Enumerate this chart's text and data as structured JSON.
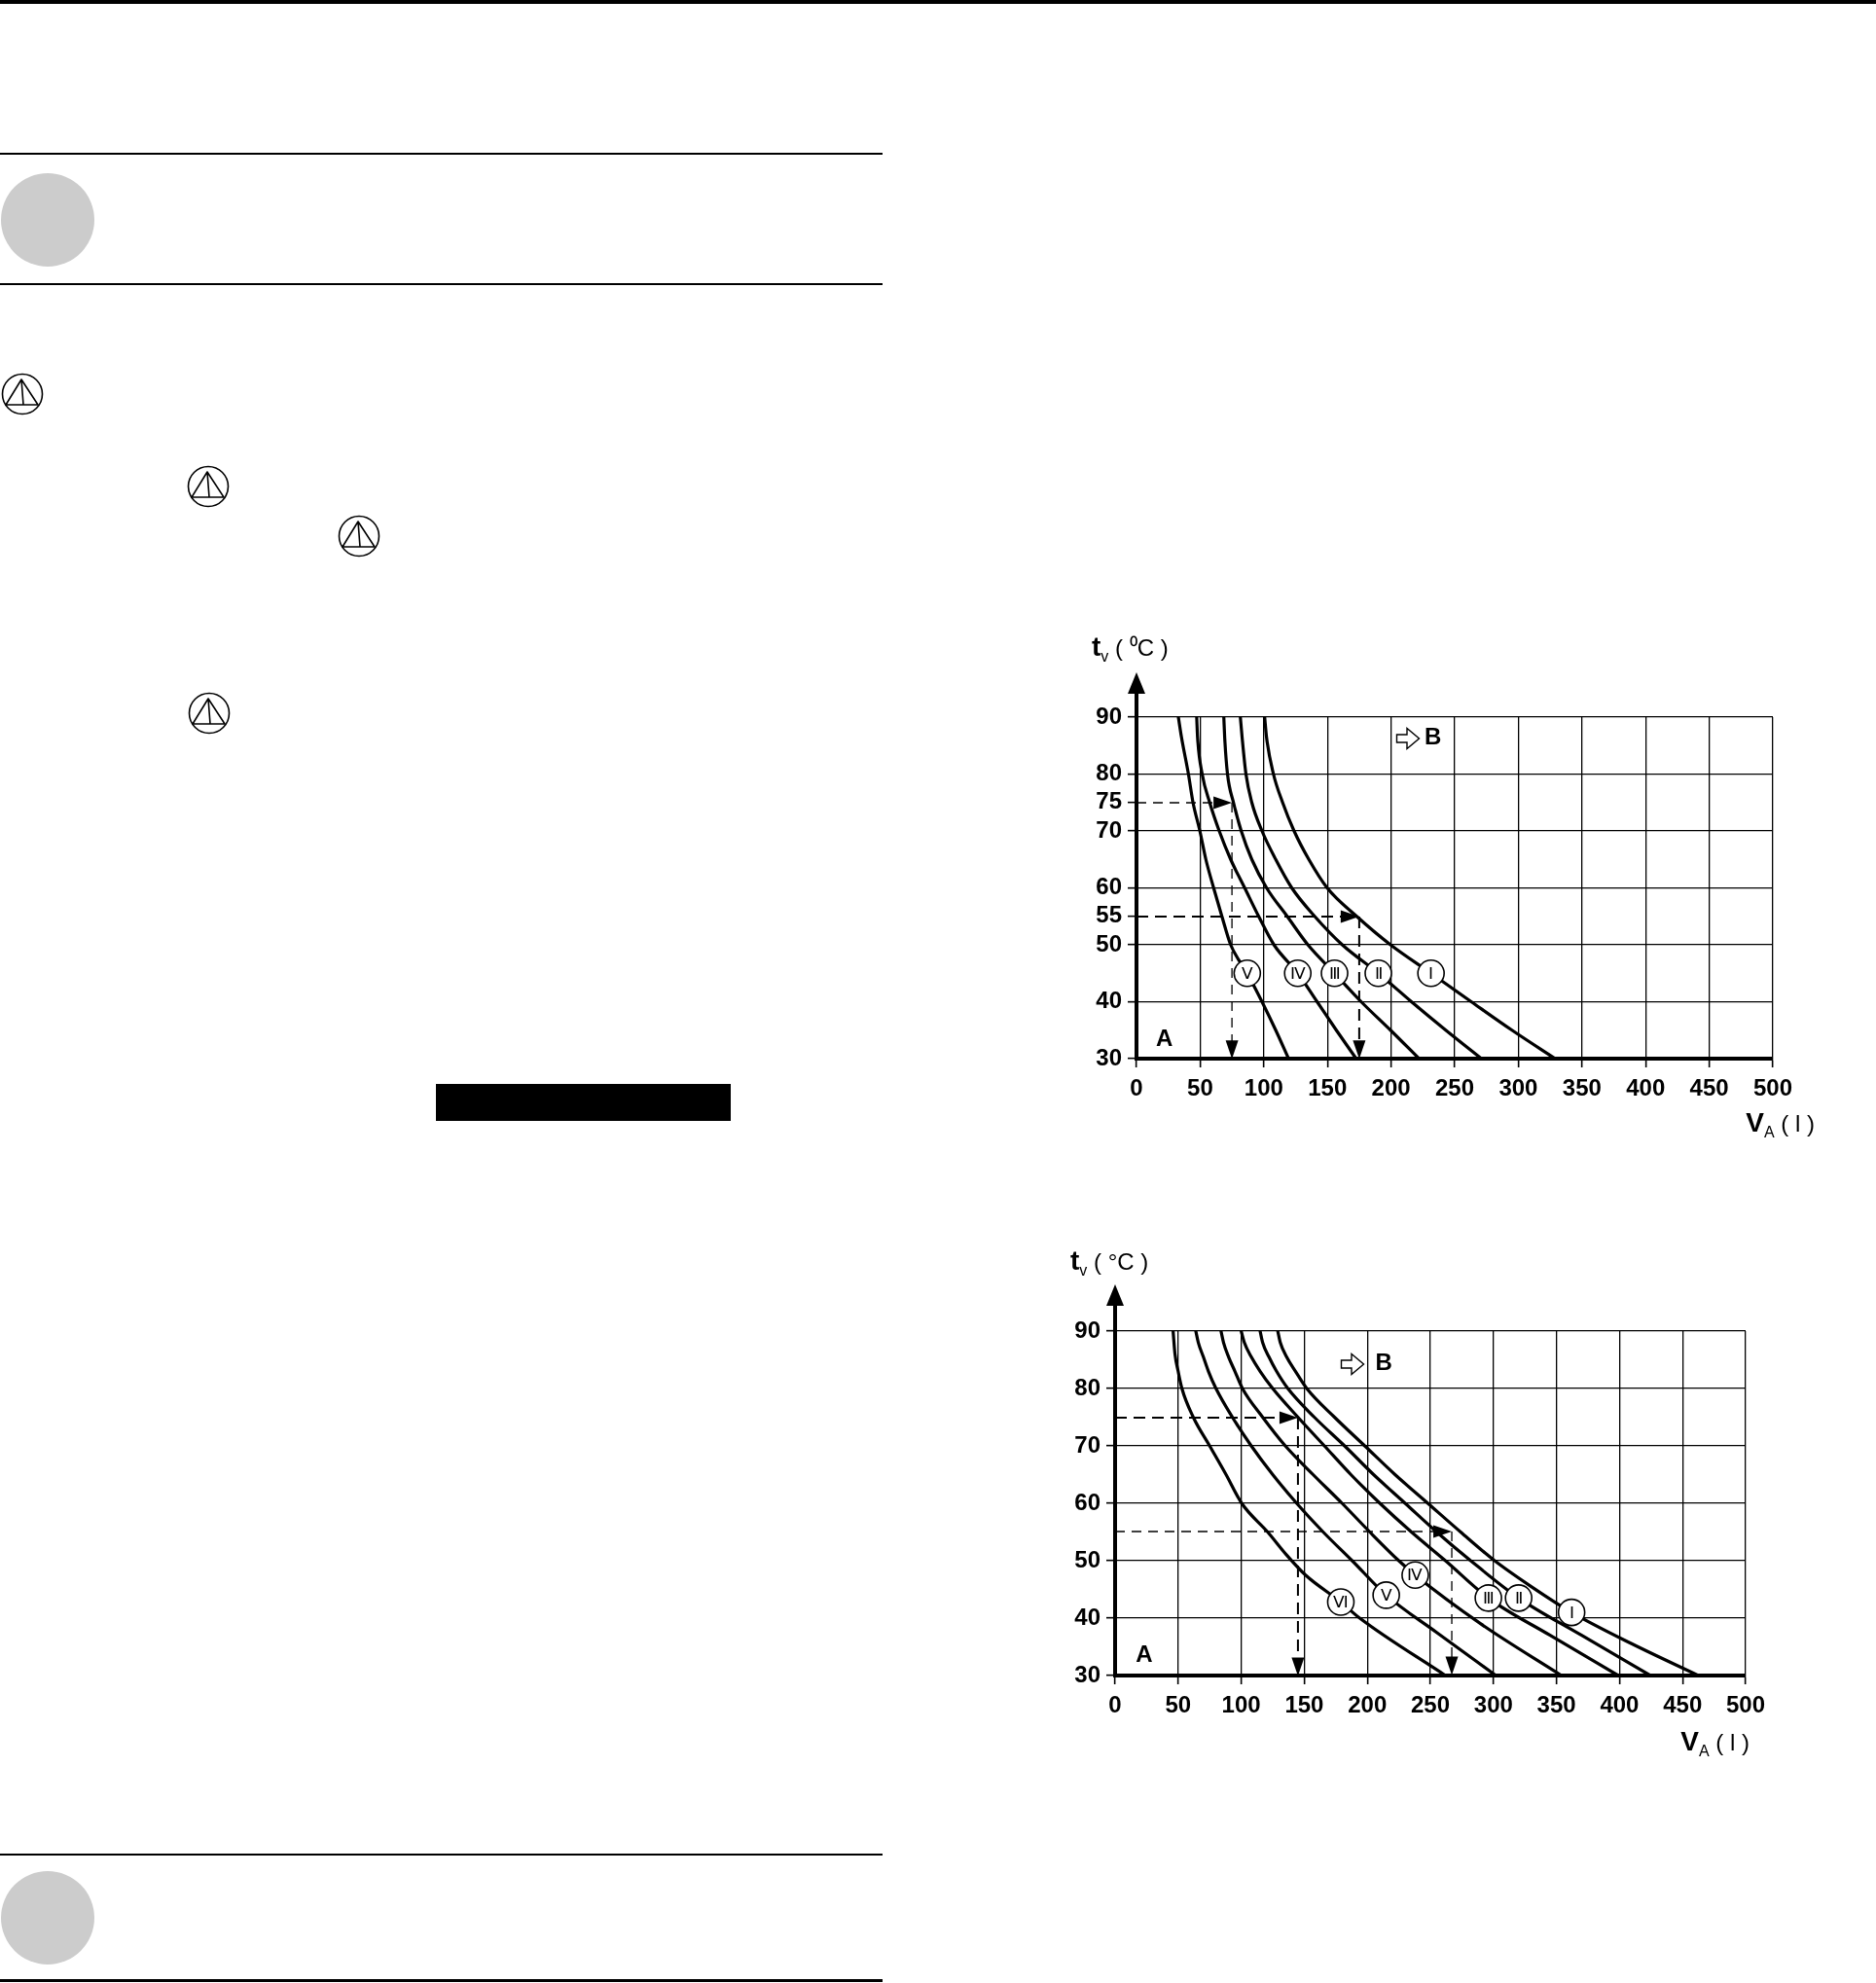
{
  "chart_data": [
    {
      "type": "line",
      "xlabel": "V$_{A}$ ( l )",
      "ylabel": "t$_{v}$ ( ⁰C )",
      "xlim": [
        0,
        500
      ],
      "xticks": [
        0,
        50,
        100,
        150,
        200,
        250,
        300,
        350,
        400,
        450,
        500
      ],
      "ylim": [
        30,
        90
      ],
      "yticks": [
        30,
        40,
        50,
        55,
        60,
        70,
        75,
        80,
        90
      ],
      "grid": true,
      "marker": "none",
      "line_style": "solid",
      "annotations": [
        "A",
        "B"
      ],
      "series": [
        {
          "name": "Ⅰ",
          "color": "#000000",
          "x": [
            100.7,
            102.2,
            107.6,
            114.8,
            123.8,
            135.4,
            149.8,
            173,
            199.6,
            231.4,
            263,
            295,
            329
          ],
          "values": [
            90,
            86.4,
            80,
            75,
            70,
            65,
            60,
            55,
            50,
            45,
            40,
            35,
            30
          ]
        },
        {
          "name": "Ⅱ",
          "color": "#000000",
          "x": [
            81.6,
            83,
            86,
            90.6,
            98.6,
            109.4,
            122,
            140,
            161.7,
            190,
            216,
            243,
            271
          ],
          "values": [
            90,
            86.4,
            80,
            75,
            70,
            65,
            60,
            55,
            50,
            45,
            40,
            35,
            30
          ]
        },
        {
          "name": "Ⅲ",
          "color": "#000000",
          "x": [
            68.6,
            69.3,
            71.5,
            76.2,
            82.3,
            90.6,
            102.2,
            118.4,
            134.7,
            155.6,
            176.5,
            199.6,
            222
          ],
          "values": [
            90,
            86.4,
            80,
            75,
            70,
            65,
            60,
            55,
            50,
            45,
            40,
            35,
            30
          ]
        },
        {
          "name": "Ⅳ",
          "color": "#000000",
          "x": [
            47.3,
            48,
            51.6,
            57.5,
            65,
            74,
            85,
            96,
            108,
            126.7,
            141.9,
            157,
            172.6
          ],
          "values": [
            90,
            86.4,
            80,
            75,
            70,
            65,
            60,
            55,
            50,
            45,
            40,
            35,
            30
          ]
        },
        {
          "name": "Ⅴ",
          "color": "#000000",
          "x": [
            32.9,
            35.4,
            40.8,
            44.4,
            49.8,
            54.5,
            60.6,
            67.1,
            74,
            87,
            98.6,
            109.4,
            119.5
          ],
          "values": [
            90,
            86.4,
            80,
            75,
            70,
            65,
            60,
            55,
            50,
            45,
            40,
            35,
            30
          ]
        }
      ]
    },
    {
      "type": "line",
      "xlabel": "V$_{A}$ ( l )",
      "ylabel": "t$_{v}$ ( °C )",
      "xlim": [
        0,
        500
      ],
      "xticks": [
        0,
        50,
        100,
        150,
        200,
        250,
        300,
        350,
        400,
        450,
        500
      ],
      "ylim": [
        30,
        90
      ],
      "yticks": [
        30,
        40,
        50,
        60,
        70,
        80,
        90
      ],
      "grid": true,
      "marker": "none",
      "line_style": "solid",
      "annotations": [
        "A",
        "B"
      ],
      "series": [
        {
          "name": "Ⅰ",
          "color": "#000000",
          "x": [
            129,
            131,
            136,
            143,
            152,
            174,
            198,
            222,
            248,
            274,
            301,
            330,
            362,
            410,
            462.5
          ],
          "values": [
            90,
            88,
            85.5,
            83,
            80,
            75,
            70,
            65,
            60,
            55,
            50,
            45.5,
            41,
            35.5,
            30
          ]
        },
        {
          "name": "Ⅱ",
          "color": "#000000",
          "x": [
            115,
            117,
            122,
            128,
            137,
            158,
            182,
            205,
            230,
            255,
            282,
            320,
            370,
            424.5
          ],
          "values": [
            90,
            88,
            85.5,
            83,
            80,
            75,
            70,
            65,
            60,
            55,
            50,
            43.5,
            37,
            30
          ]
        },
        {
          "name": "Ⅲ",
          "color": "#000000",
          "x": [
            100,
            102.5,
            108,
            115,
            125,
            145,
            166,
            187,
            210,
            235,
            262,
            296,
            345,
            399
          ],
          "values": [
            90,
            88,
            85.5,
            83,
            80,
            75,
            70,
            65,
            60,
            55,
            50,
            43.5,
            37,
            30
          ]
        },
        {
          "name": "Ⅳ",
          "color": "#000000",
          "x": [
            84,
            86,
            90,
            95,
            101,
            117,
            135,
            157,
            180,
            202,
            225,
            238,
            290,
            354
          ],
          "values": [
            90,
            88,
            85.5,
            83,
            80,
            75,
            70,
            65,
            60,
            55,
            50,
            47.5,
            39,
            30
          ]
        },
        {
          "name": "Ⅴ",
          "color": "#000000",
          "x": [
            64,
            66,
            70,
            74,
            80,
            93,
            108,
            125,
            144,
            165,
            188,
            215,
            255,
            302
          ],
          "values": [
            90,
            88,
            85.5,
            83,
            80,
            75,
            70,
            65,
            60,
            55,
            50,
            44,
            37.5,
            30
          ]
        },
        {
          "name": "Ⅵ",
          "color": "#000000",
          "x": [
            46,
            47.5,
            50,
            53,
            62,
            75,
            88,
            100.4,
            121,
            136,
            151,
            179,
            194,
            262
          ],
          "values": [
            90,
            86,
            83,
            80,
            75,
            70,
            65,
            60,
            55,
            51,
            47.5,
            42.8,
            40,
            30
          ]
        }
      ]
    }
  ]
}
